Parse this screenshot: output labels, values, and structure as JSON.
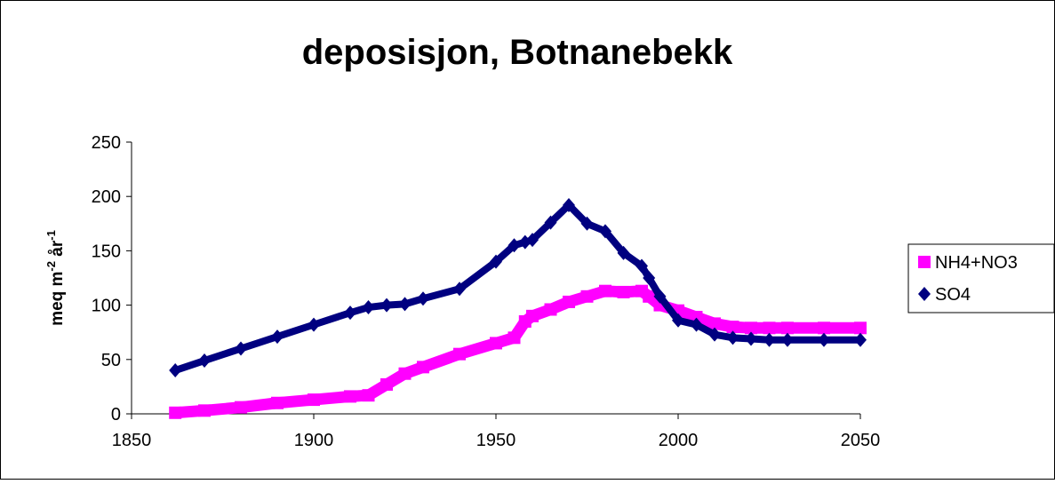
{
  "chart_data": {
    "type": "line",
    "title": "deposisjon, Botnanebekk",
    "ylabel": [
      "meq m",
      "-2",
      " år",
      "-1"
    ],
    "x": [
      1862,
      1870,
      1880,
      1890,
      1900,
      1910,
      1915,
      1920,
      1925,
      1930,
      1940,
      1950,
      1955,
      1958,
      1960,
      1965,
      1970,
      1975,
      1980,
      1985,
      1990,
      1992,
      1995,
      2000,
      2005,
      2010,
      2015,
      2020,
      2025,
      2030,
      2040,
      2050
    ],
    "series": [
      {
        "name": "NH4+NO3",
        "color": "#ff00ff",
        "marker": "square",
        "values": [
          1,
          3,
          6,
          10,
          13,
          16,
          17,
          27,
          37,
          43,
          55,
          65,
          70,
          85,
          90,
          96,
          103,
          108,
          113,
          112,
          113,
          108,
          100,
          95,
          89,
          83,
          80,
          79,
          79,
          79,
          79,
          79
        ]
      },
      {
        "name": "SO4",
        "color": "#000080",
        "marker": "diamond",
        "values": [
          40,
          49,
          60,
          71,
          82,
          93,
          98,
          100,
          101,
          106,
          115,
          140,
          155,
          158,
          160,
          176,
          192,
          175,
          168,
          148,
          136,
          125,
          108,
          86,
          82,
          73,
          70,
          69,
          68,
          68,
          68,
          68
        ]
      }
    ],
    "xlim": [
      1850,
      2050
    ],
    "xticks": [
      1850,
      1900,
      1950,
      2000,
      2050
    ],
    "ylim": [
      0,
      250
    ],
    "yticks": [
      0,
      50,
      100,
      150,
      200,
      250
    ],
    "grid": false,
    "legend": "right"
  }
}
